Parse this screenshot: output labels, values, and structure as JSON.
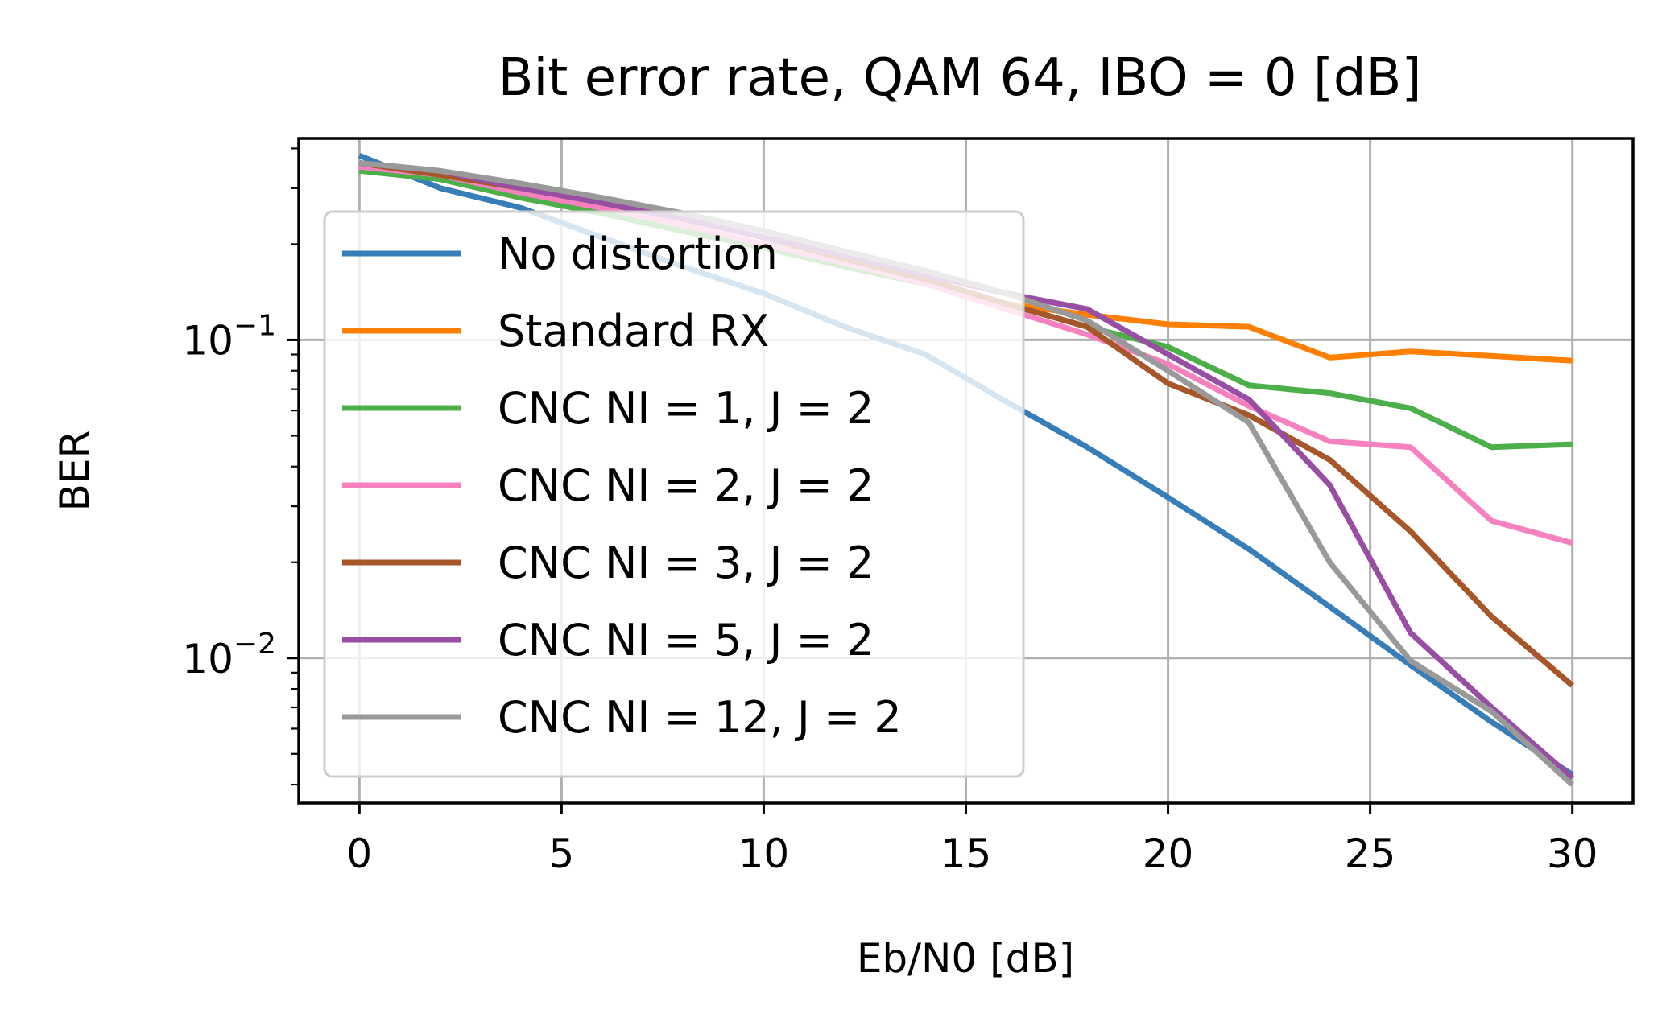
{
  "chart_data": {
    "type": "line",
    "title": "Bit error rate, QAM 64, IBO = 0 [dB]",
    "xlabel": "Eb/N0 [dB]",
    "ylabel": "BER",
    "xlim": [
      -1.5,
      31.5
    ],
    "ylim": [
      0.0035,
      0.43
    ],
    "yscale": "log",
    "grid": true,
    "legend_position": "upper-left",
    "x_ticks": [
      0,
      5,
      10,
      15,
      20,
      25,
      30
    ],
    "x_tick_labels": [
      "0",
      "5",
      "10",
      "15",
      "20",
      "25",
      "30"
    ],
    "y_ticks": [
      0.1,
      0.01
    ],
    "y_tick_base": [
      "10",
      "10"
    ],
    "y_tick_exp": [
      "−1",
      "−2"
    ],
    "x": [
      0,
      2,
      4,
      6,
      8,
      10,
      12,
      14,
      16,
      18,
      20,
      22,
      24,
      26,
      28,
      30
    ],
    "series": [
      {
        "name": "No distortion",
        "color": "#377eb8",
        "values": [
          0.38,
          0.3,
          0.26,
          0.21,
          0.17,
          0.14,
          0.11,
          0.09,
          0.064,
          0.046,
          0.032,
          0.022,
          0.0145,
          0.0095,
          0.0063,
          0.0043
        ]
      },
      {
        "name": "Standard RX",
        "color": "#ff7f00",
        "values": [
          0.35,
          0.32,
          0.28,
          0.25,
          0.22,
          0.195,
          0.17,
          0.15,
          0.13,
          0.12,
          0.112,
          0.11,
          0.088,
          0.092,
          0.089,
          0.086
        ]
      },
      {
        "name": "CNC NI = 1, J = 2",
        "color": "#4daf4a",
        "values": [
          0.34,
          0.32,
          0.28,
          0.25,
          0.22,
          0.195,
          0.17,
          0.15,
          0.13,
          0.11,
          0.095,
          0.072,
          0.068,
          0.061,
          0.046,
          0.047
        ]
      },
      {
        "name": "CNC NI = 2, J = 2",
        "color": "#f781bf",
        "values": [
          0.35,
          0.33,
          0.29,
          0.26,
          0.23,
          0.2,
          0.175,
          0.15,
          0.125,
          0.104,
          0.084,
          0.062,
          0.048,
          0.046,
          0.027,
          0.023
        ]
      },
      {
        "name": "CNC NI = 3, J = 2",
        "color": "#a65628",
        "values": [
          0.36,
          0.33,
          0.3,
          0.27,
          0.24,
          0.21,
          0.18,
          0.155,
          0.13,
          0.11,
          0.073,
          0.058,
          0.042,
          0.025,
          0.0135,
          0.0082
        ]
      },
      {
        "name": "CNC NI = 5, J = 2",
        "color": "#984ea3",
        "values": [
          0.36,
          0.34,
          0.3,
          0.27,
          0.24,
          0.21,
          0.185,
          0.16,
          0.14,
          0.125,
          0.09,
          0.065,
          0.035,
          0.012,
          0.007,
          0.0042
        ]
      },
      {
        "name": "CNC NI = 12, J = 2",
        "color": "#999999",
        "values": [
          0.36,
          0.34,
          0.31,
          0.28,
          0.25,
          0.22,
          0.19,
          0.165,
          0.14,
          0.115,
          0.08,
          0.055,
          0.02,
          0.0098,
          0.0068,
          0.004
        ]
      }
    ]
  }
}
